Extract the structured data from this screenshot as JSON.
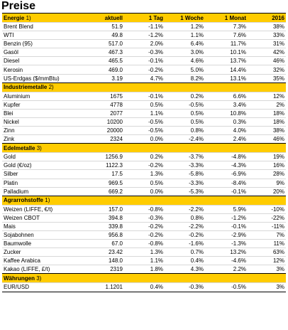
{
  "title": "Preise",
  "columns": [
    "aktuell",
    "1 Tag",
    "1 Woche",
    "1 Monat",
    "2016"
  ],
  "groups": [
    {
      "name": "Energie",
      "note": "1)",
      "rows": [
        [
          "Brent Blend",
          "51.9",
          "-1.1%",
          "1.2%",
          "7.3%",
          "38%"
        ],
        [
          "WTI",
          "49.8",
          "-1.2%",
          "1.1%",
          "7.6%",
          "33%"
        ],
        [
          "Benzin (95)",
          "517.0",
          "2.0%",
          "6.4%",
          "11.7%",
          "31%"
        ],
        [
          "Gasöl",
          "467.3",
          "-0.3%",
          "3.0%",
          "10.1%",
          "42%"
        ],
        [
          "Diesel",
          "465.5",
          "-0.1%",
          "4.6%",
          "13.7%",
          "46%"
        ],
        [
          "Kerosin",
          "469.0",
          "-0.2%",
          "5.0%",
          "14.4%",
          "32%"
        ],
        [
          "US-Erdgas ($/mmBtu)",
          "3.19",
          "4.7%",
          "8.2%",
          "13.1%",
          "35%"
        ]
      ]
    },
    {
      "name": "Industriemetalle",
      "note": "2)",
      "rows": [
        [
          "Aluminium",
          "1675",
          "-0.1%",
          "0.2%",
          "6.6%",
          "12%"
        ],
        [
          "Kupfer",
          "4778",
          "0.5%",
          "-0.5%",
          "3.4%",
          "2%"
        ],
        [
          "Blei",
          "2077",
          "1.1%",
          "0.5%",
          "10.8%",
          "18%"
        ],
        [
          "Nickel",
          "10200",
          "-0.5%",
          "0.5%",
          "0.3%",
          "18%"
        ],
        [
          "Zinn",
          "20000",
          "-0.5%",
          "0.8%",
          "4.0%",
          "38%"
        ],
        [
          "Zink",
          "2324",
          "0.0%",
          "-2.4%",
          "2.4%",
          "46%"
        ]
      ]
    },
    {
      "name": "Edelmetalle",
      "note": "3)",
      "rows": [
        [
          "Gold",
          "1256.9",
          "0.2%",
          "-3.7%",
          "-4.8%",
          "19%"
        ],
        [
          "Gold (€/oz)",
          "1122.3",
          "-0.2%",
          "-3.3%",
          "-4.3%",
          "16%"
        ],
        [
          "Silber",
          "17.5",
          "1.3%",
          "-5.8%",
          "-6.9%",
          "28%"
        ],
        [
          "Platin",
          "969.5",
          "0.5%",
          "-3.3%",
          "-8.4%",
          "9%"
        ],
        [
          "Palladium",
          "669.2",
          "0.0%",
          "-5.3%",
          "-0.1%",
          "20%"
        ]
      ]
    },
    {
      "name": "Agrarrohstoffe",
      "note": "1)",
      "rows": [
        [
          "Weizen (LIFFE, €/t)",
          "157.0",
          "-0.8%",
          "-2.2%",
          "5.9%",
          "-10%"
        ],
        [
          "Weizen CBOT",
          "394.8",
          "-0.3%",
          "0.8%",
          "-1.2%",
          "-22%"
        ],
        [
          "Mais",
          "339.8",
          "-0.2%",
          "-2.2%",
          "-0.1%",
          "-11%"
        ],
        [
          "Sojabohnen",
          "956.8",
          "-0.2%",
          "-0.2%",
          "-2.9%",
          "7%"
        ],
        [
          "Baumwolle",
          "67.0",
          "-0.8%",
          "-1.6%",
          "-1.3%",
          "11%"
        ],
        [
          "Zucker",
          "23.42",
          "1.3%",
          "0.7%",
          "13.2%",
          "63%"
        ],
        [
          "Kaffee Arabica",
          "148.0",
          "1.1%",
          "0.4%",
          "-4.6%",
          "12%"
        ],
        [
          "Kakao (LIFFE, £/t)",
          "2319",
          "1.8%",
          "4.3%",
          "2.2%",
          "3%"
        ]
      ]
    },
    {
      "name": "Währungen",
      "note": "3)",
      "rows": [
        [
          "EUR/USD",
          "1.1201",
          "0.4%",
          "-0.3%",
          "-0.5%",
          "3%"
        ]
      ]
    }
  ]
}
